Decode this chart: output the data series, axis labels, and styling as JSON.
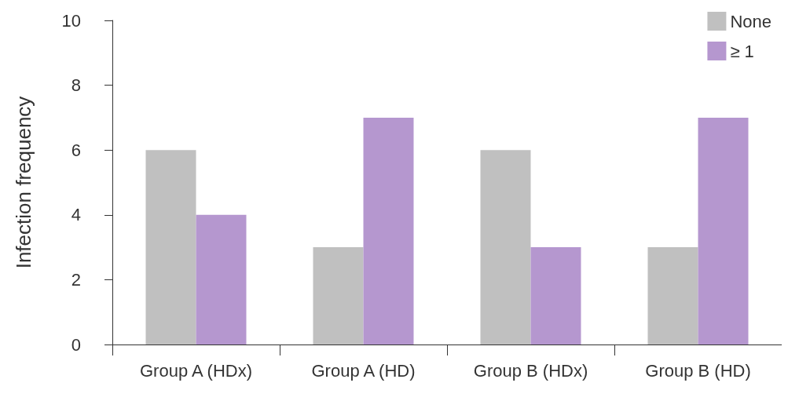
{
  "chart_data": {
    "type": "bar",
    "ylabel": "Infection frequency",
    "categories": [
      "Group A (HDx)",
      "Group A (HD)",
      "Group B (HDx)",
      "Group B (HD)"
    ],
    "series": [
      {
        "name": "None",
        "color": "#c0c0c0",
        "values": [
          6,
          3,
          6,
          3
        ]
      },
      {
        "name": "≥ 1",
        "color": "#b597cf",
        "values": [
          4,
          7,
          3,
          7
        ]
      }
    ],
    "ylim": [
      0,
      10
    ],
    "yticks": [
      0,
      2,
      4,
      6,
      8,
      10
    ],
    "grid": false,
    "legend": "top right",
    "marker": "square"
  }
}
